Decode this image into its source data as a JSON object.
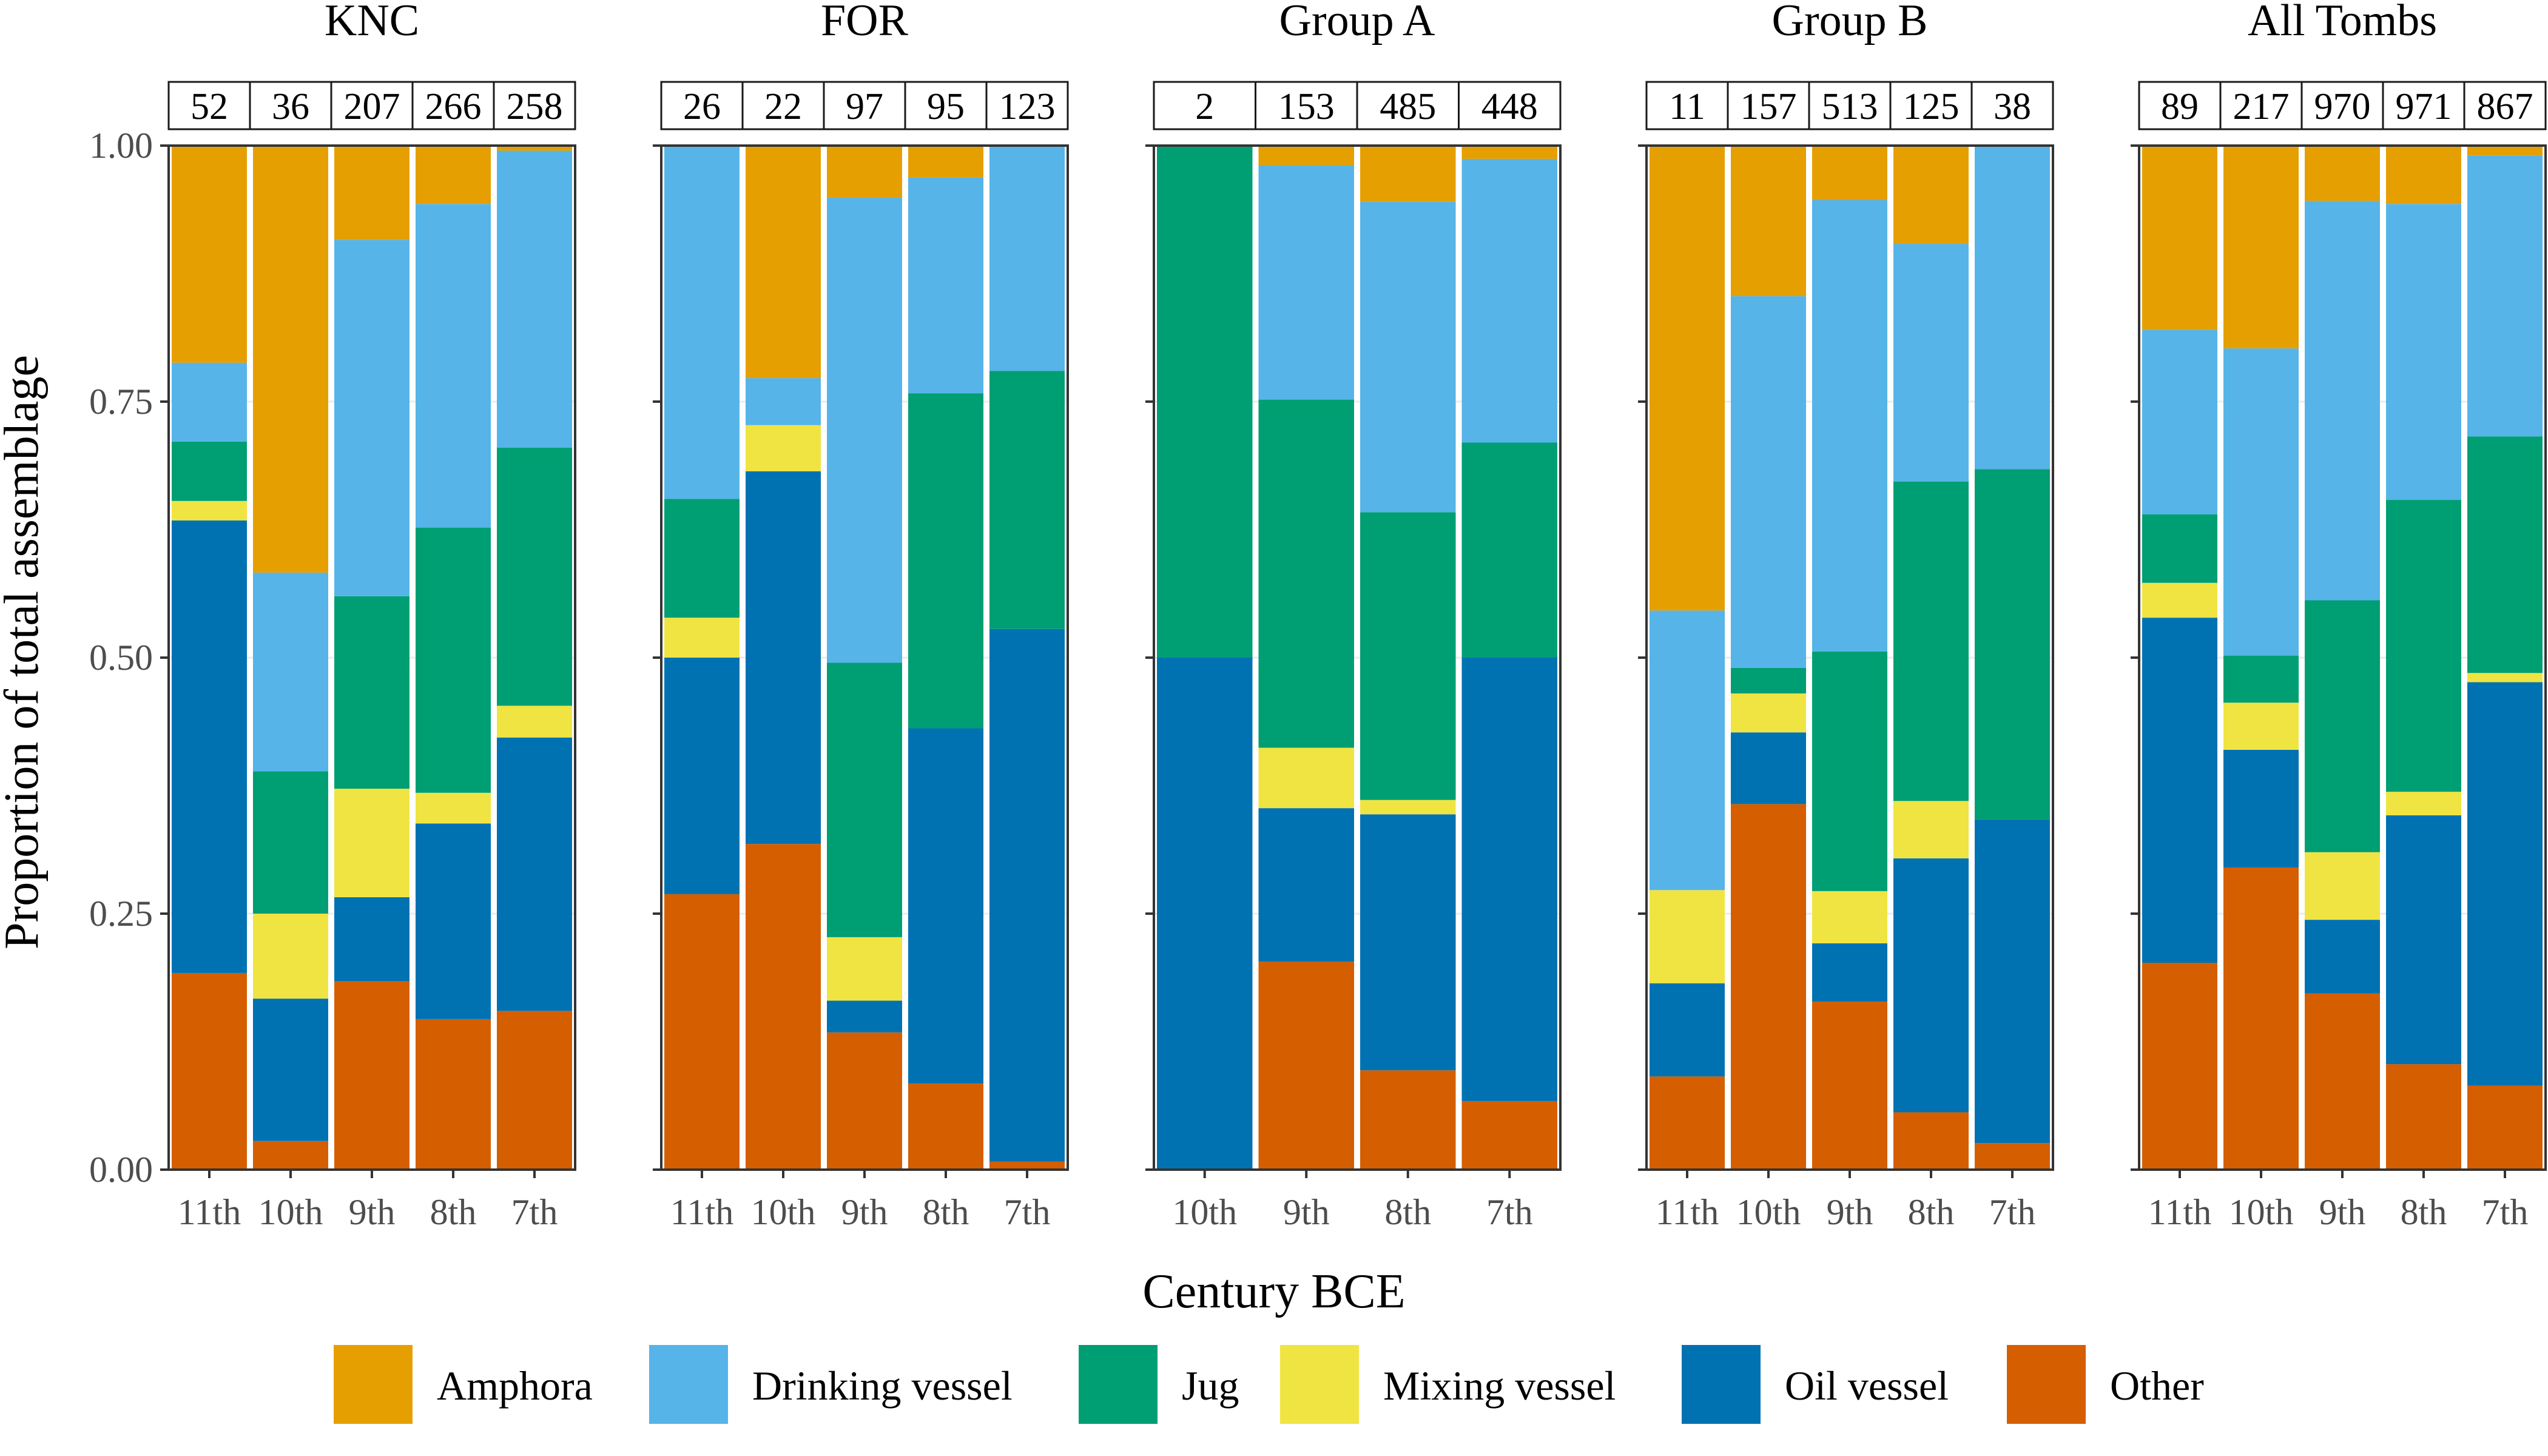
{
  "chart_data": {
    "type": "bar",
    "stacked": true,
    "xlabel": "Century BCE",
    "ylabel": "Proportion of total assemblage",
    "ylim": [
      0,
      1
    ],
    "yticks": [
      "0.00",
      "0.25",
      "0.50",
      "0.75",
      "1.00"
    ],
    "legend_position": "bottom",
    "categories_order": [
      "Other",
      "Oil vessel",
      "Mixing vessel",
      "Jug",
      "Drinking vessel",
      "Amphora"
    ],
    "legend": [
      {
        "name": "Amphora",
        "color": "#E69F00"
      },
      {
        "name": "Drinking vessel",
        "color": "#56B4E9"
      },
      {
        "name": "Jug",
        "color": "#009E73"
      },
      {
        "name": "Mixing vessel",
        "color": "#F0E442"
      },
      {
        "name": "Oil vessel",
        "color": "#0072B2"
      },
      {
        "name": "Other",
        "color": "#D55E00"
      }
    ],
    "facets": [
      {
        "title": "KNC",
        "bars": [
          {
            "label": "11th",
            "count": "52",
            "values": [
              0.192,
              0.442,
              0.019,
              0.058,
              0.077,
              0.212
            ]
          },
          {
            "label": "10th",
            "count": "36",
            "values": [
              0.028,
              0.139,
              0.083,
              0.139,
              0.194,
              0.417
            ]
          },
          {
            "label": "9th",
            "count": "207",
            "values": [
              0.184,
              0.082,
              0.106,
              0.188,
              0.348,
              0.092
            ]
          },
          {
            "label": "8th",
            "count": "266",
            "values": [
              0.147,
              0.191,
              0.03,
              0.259,
              0.316,
              0.057
            ]
          },
          {
            "label": "7th",
            "count": "258",
            "values": [
              0.155,
              0.267,
              0.031,
              0.252,
              0.29,
              0.005
            ]
          }
        ]
      },
      {
        "title": "FOR",
        "bars": [
          {
            "label": "11th",
            "count": "26",
            "values": [
              0.269,
              0.231,
              0.039,
              0.116,
              0.345,
              0.0
            ]
          },
          {
            "label": "10th",
            "count": "22",
            "values": [
              0.318,
              0.364,
              0.045,
              0.0,
              0.046,
              0.227
            ]
          },
          {
            "label": "9th",
            "count": "97",
            "values": [
              0.134,
              0.031,
              0.062,
              0.268,
              0.454,
              0.051
            ]
          },
          {
            "label": "8th",
            "count": "95",
            "values": [
              0.084,
              0.347,
              0.0,
              0.327,
              0.211,
              0.031
            ]
          },
          {
            "label": "7th",
            "count": "123",
            "values": [
              0.008,
              0.52,
              0.0,
              0.252,
              0.22,
              0.0
            ]
          }
        ]
      },
      {
        "title": "Group A",
        "bars": [
          {
            "label": "10th",
            "count": "2",
            "values": [
              0.0,
              0.5,
              0.0,
              0.5,
              0.0,
              0.0
            ]
          },
          {
            "label": "9th",
            "count": "153",
            "values": [
              0.203,
              0.15,
              0.059,
              0.34,
              0.229,
              0.019
            ]
          },
          {
            "label": "8th",
            "count": "485",
            "values": [
              0.097,
              0.25,
              0.014,
              0.281,
              0.303,
              0.055
            ]
          },
          {
            "label": "7th",
            "count": "448",
            "values": [
              0.067,
              0.433,
              0.0,
              0.21,
              0.277,
              0.013
            ]
          }
        ]
      },
      {
        "title": "Group B",
        "bars": [
          {
            "label": "11th",
            "count": "11",
            "values": [
              0.091,
              0.091,
              0.091,
              0.0,
              0.273,
              0.454
            ]
          },
          {
            "label": "10th",
            "count": "157",
            "values": [
              0.357,
              0.07,
              0.038,
              0.025,
              0.363,
              0.147
            ]
          },
          {
            "label": "9th",
            "count": "513",
            "values": [
              0.164,
              0.057,
              0.051,
              0.234,
              0.441,
              0.053
            ]
          },
          {
            "label": "8th",
            "count": "125",
            "values": [
              0.056,
              0.248,
              0.056,
              0.312,
              0.232,
              0.096
            ]
          },
          {
            "label": "7th",
            "count": "38",
            "values": [
              0.026,
              0.316,
              0.0,
              0.342,
              0.316,
              0.0
            ]
          }
        ]
      },
      {
        "title": "All Tombs",
        "bars": [
          {
            "label": "11th",
            "count": "89",
            "values": [
              0.202,
              0.337,
              0.034,
              0.067,
              0.18,
              0.18
            ]
          },
          {
            "label": "10th",
            "count": "217",
            "values": [
              0.295,
              0.115,
              0.046,
              0.046,
              0.3,
              0.198
            ]
          },
          {
            "label": "9th",
            "count": "970",
            "values": [
              0.172,
              0.072,
              0.066,
              0.246,
              0.39,
              0.054
            ]
          },
          {
            "label": "8th",
            "count": "971",
            "values": [
              0.103,
              0.243,
              0.023,
              0.285,
              0.289,
              0.057
            ]
          },
          {
            "label": "7th",
            "count": "867",
            "values": [
              0.082,
              0.394,
              0.009,
              0.231,
              0.274,
              0.01
            ]
          }
        ]
      }
    ]
  }
}
